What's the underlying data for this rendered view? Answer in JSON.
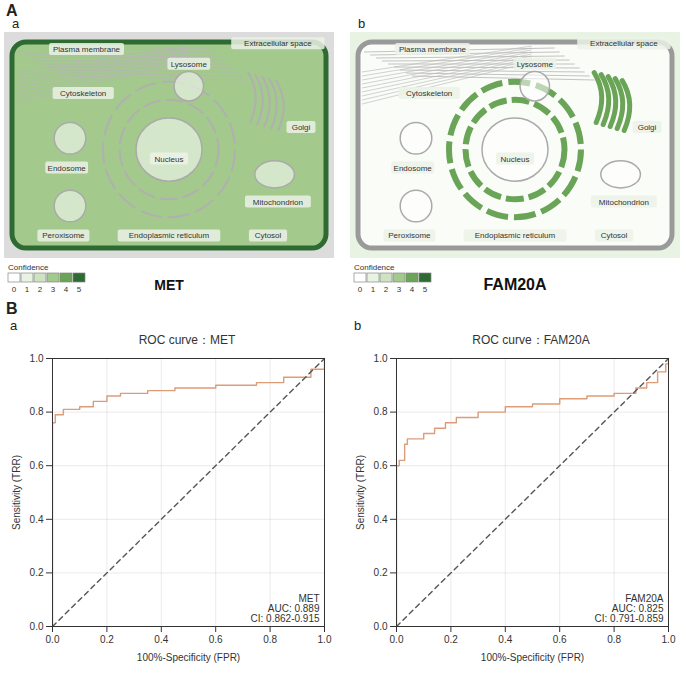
{
  "panel_A": {
    "letter": "A",
    "legend_title": "Confidence",
    "confidence_levels": [
      0,
      1,
      2,
      3,
      4,
      5
    ],
    "confidence_colors": [
      "#ffffff",
      "#e9f3e4",
      "#cde3c1",
      "#a3c98c",
      "#6aa457",
      "#2e6b33"
    ],
    "cells": [
      {
        "letter": "a",
        "gene": "MET",
        "compartments": [
          {
            "name": "Plasma membrane",
            "confidence": 5
          },
          {
            "name": "Extracellular space",
            "confidence": 0
          },
          {
            "name": "Lysosome",
            "confidence": 0
          },
          {
            "name": "Cytoskeleton",
            "confidence": 0
          },
          {
            "name": "Golgi",
            "confidence": 0
          },
          {
            "name": "Endosome",
            "confidence": 0
          },
          {
            "name": "Nucleus",
            "confidence": 0
          },
          {
            "name": "Mitochondrion",
            "confidence": 0
          },
          {
            "name": "Peroxisome",
            "confidence": 0
          },
          {
            "name": "Endoplasmic reticulum",
            "confidence": 0
          },
          {
            "name": "Cytosol",
            "confidence": 3
          }
        ]
      },
      {
        "letter": "b",
        "gene": "FAM20A",
        "compartments": [
          {
            "name": "Plasma membrane",
            "confidence": 0
          },
          {
            "name": "Extracellular space",
            "confidence": 1
          },
          {
            "name": "Lysosome",
            "confidence": 0
          },
          {
            "name": "Cytoskeleton",
            "confidence": 0
          },
          {
            "name": "Golgi",
            "confidence": 4
          },
          {
            "name": "Endosome",
            "confidence": 0
          },
          {
            "name": "Nucleus",
            "confidence": 0
          },
          {
            "name": "Mitochondrion",
            "confidence": 0
          },
          {
            "name": "Peroxisome",
            "confidence": 0
          },
          {
            "name": "Endoplasmic reticulum",
            "confidence": 4
          },
          {
            "name": "Cytosol",
            "confidence": 0
          }
        ]
      }
    ]
  },
  "panel_B": {
    "letter": "B",
    "sub_letters": [
      "a",
      "b"
    ]
  },
  "chart_data": [
    {
      "type": "line",
      "title": "ROC curve：MET",
      "x_label": "100%-Specificity (FPR)",
      "y_label": "Sensitivity (TRR)",
      "xlim": [
        0,
        1
      ],
      "ylim": [
        0,
        1
      ],
      "xticks": [
        {
          "value": 0,
          "label": "0.0"
        },
        {
          "value": 0.2,
          "label": "0.2"
        },
        {
          "value": 0.4,
          "label": "0.4"
        },
        {
          "value": 0.6,
          "label": "0.6"
        },
        {
          "value": 0.8,
          "label": "0.8"
        },
        {
          "value": 1,
          "label": "1.0"
        }
      ],
      "yticks": [
        {
          "value": 0,
          "label": "0.0"
        },
        {
          "value": 0.2,
          "label": "0.2"
        },
        {
          "value": 0.4,
          "label": "0.4"
        },
        {
          "value": 0.6,
          "label": "0.6"
        },
        {
          "value": 0.8,
          "label": "0.8"
        },
        {
          "value": 1,
          "label": "1.0"
        }
      ],
      "grid": true,
      "series": [
        {
          "name": "MET",
          "color": "#dd9c78",
          "line_style": "step",
          "x": [
            0,
            0,
            0.01,
            0.04,
            0.1,
            0.15,
            0.2,
            0.25,
            0.35,
            0.45,
            0.6,
            0.75,
            0.85,
            0.95,
            1
          ],
          "values": [
            0,
            0.76,
            0.79,
            0.81,
            0.82,
            0.84,
            0.86,
            0.87,
            0.88,
            0.89,
            0.9,
            0.91,
            0.93,
            0.96,
            1
          ]
        },
        {
          "color": "#555555",
          "line_style": "dashed",
          "x": [
            0,
            1
          ],
          "values": [
            0,
            1
          ]
        }
      ],
      "annotations": [
        "MET",
        "AUC: 0.889",
        "CI: 0.862-0.915"
      ]
    },
    {
      "type": "line",
      "title": "ROC curve：FAM20A",
      "x_label": "100%-Specificity (FPR)",
      "y_label": "Sensitivity (TRR)",
      "xlim": [
        0,
        1
      ],
      "ylim": [
        0,
        1
      ],
      "xticks": [
        {
          "value": 0,
          "label": "0.0"
        },
        {
          "value": 0.2,
          "label": "0.2"
        },
        {
          "value": 0.4,
          "label": "0.4"
        },
        {
          "value": 0.6,
          "label": "0.6"
        },
        {
          "value": 0.8,
          "label": "0.8"
        },
        {
          "value": 1,
          "label": "1.0"
        }
      ],
      "yticks": [
        {
          "value": 0,
          "label": "0.0"
        },
        {
          "value": 0.2,
          "label": "0.2"
        },
        {
          "value": 0.4,
          "label": "0.4"
        },
        {
          "value": 0.6,
          "label": "0.6"
        },
        {
          "value": 0.8,
          "label": "0.8"
        },
        {
          "value": 1,
          "label": "1.0"
        }
      ],
      "grid": true,
      "series": [
        {
          "name": "FAM20A",
          "color": "#dd9c78",
          "line_style": "step",
          "x": [
            0,
            0,
            0.01,
            0.03,
            0.04,
            0.1,
            0.14,
            0.18,
            0.22,
            0.3,
            0.4,
            0.5,
            0.6,
            0.7,
            0.8,
            0.88,
            0.92,
            0.96,
            0.99,
            1
          ],
          "values": [
            0,
            0.6,
            0.62,
            0.68,
            0.7,
            0.72,
            0.74,
            0.76,
            0.78,
            0.8,
            0.82,
            0.83,
            0.85,
            0.86,
            0.87,
            0.89,
            0.91,
            0.95,
            0.98,
            1
          ]
        },
        {
          "color": "#555555",
          "line_style": "dashed",
          "x": [
            0,
            1
          ],
          "values": [
            0,
            1
          ]
        }
      ],
      "annotations": [
        "FAM20A",
        "AUC: 0.825",
        "CI: 0.791-0.859"
      ]
    }
  ]
}
